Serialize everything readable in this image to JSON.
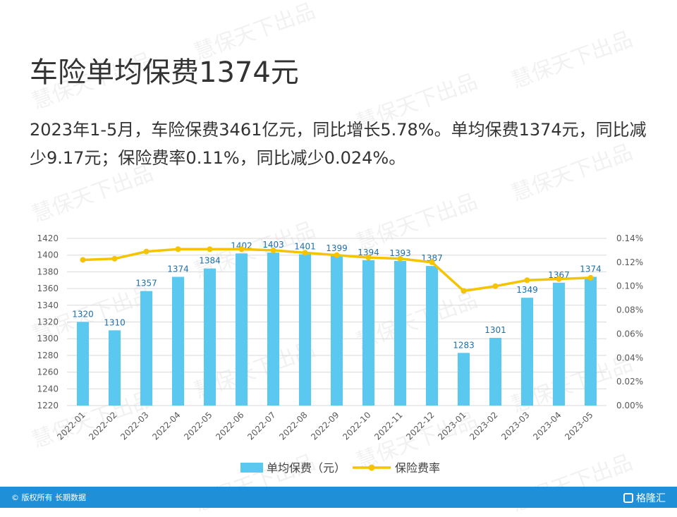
{
  "title": "车险单均保费1374元",
  "body_text": "2023年1-5月，车险保费3461亿元，同比增长5.78%。单均保费1374元，同比减少9.17元；保险费率0.11%，同比减少0.024%。",
  "watermark": "慧保天下出品",
  "footer": {
    "copyright": "© 版权所有 长期数据",
    "brand": "格隆汇"
  },
  "colors": {
    "bar": "#5bc8f0",
    "line": "#f5c400",
    "footer": "#1f8fd7",
    "text": "#333333"
  },
  "chart_data": {
    "type": "bar",
    "categories": [
      "2022-01",
      "2022-02",
      "2022-03",
      "2022-04",
      "2022-05",
      "2022-06",
      "2022-07",
      "2022-08",
      "2022-09",
      "2022-10",
      "2022-11",
      "2022-12",
      "2023-01",
      "2023-02",
      "2023-03",
      "2023-04",
      "2023-05"
    ],
    "series": [
      {
        "name": "单均保费（元）",
        "type": "bar",
        "axis": "left",
        "values": [
          1320,
          1310,
          1357,
          1374,
          1384,
          1402,
          1403,
          1401,
          1399,
          1394,
          1393,
          1387,
          1283,
          1301,
          1349,
          1367,
          1374
        ]
      },
      {
        "name": "保险费率",
        "type": "line",
        "axis": "right",
        "values": [
          0.122,
          0.123,
          0.129,
          0.131,
          0.131,
          0.131,
          0.13,
          0.128,
          0.126,
          0.124,
          0.123,
          0.12,
          0.096,
          0.1,
          0.105,
          0.106,
          0.107
        ]
      }
    ],
    "y_left": {
      "min": 1220,
      "max": 1420,
      "ticks": [
        1220,
        1240,
        1260,
        1280,
        1300,
        1320,
        1340,
        1360,
        1380,
        1400,
        1420
      ]
    },
    "y_right": {
      "min": 0,
      "max": 0.14,
      "ticks": [
        "0.00%",
        "0.02%",
        "0.04%",
        "0.06%",
        "0.08%",
        "0.10%",
        "0.12%",
        "0.14%"
      ]
    },
    "legend_position": "bottom",
    "grid": true
  }
}
